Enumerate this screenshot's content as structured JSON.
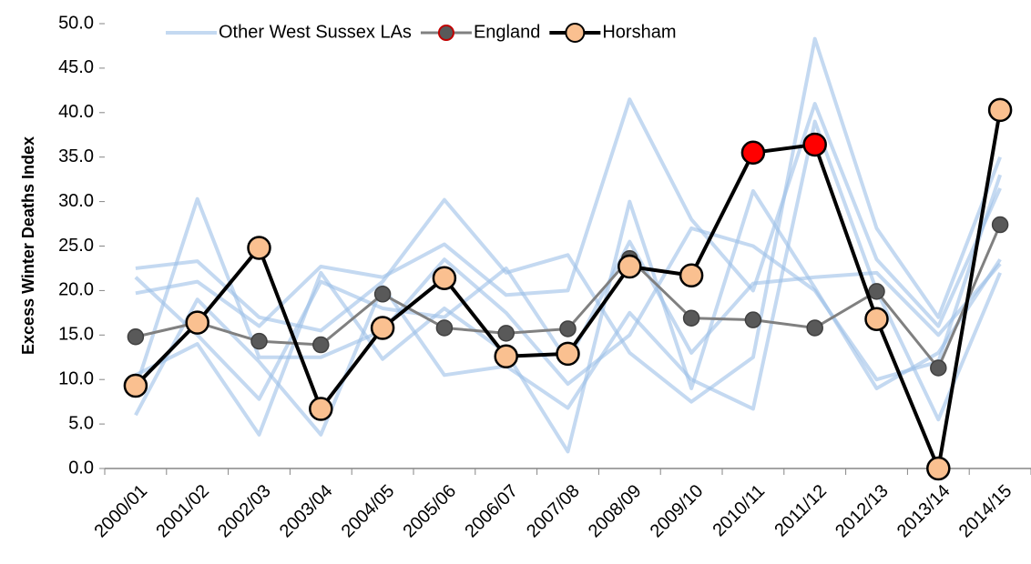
{
  "chart_data": {
    "type": "line",
    "y_label": "Excess Winter Deaths Index",
    "categories": [
      "2000/01",
      "2001/02",
      "2002/03",
      "2003/04",
      "2004/05",
      "2005/06",
      "2006/07",
      "2007/08",
      "2008/09",
      "2009/10",
      "2010/11",
      "2011/12",
      "2012/13",
      "2013/14",
      "2014/15"
    ],
    "series": [
      {
        "name": "Other West Sussex LAs",
        "color": "#9dc0e8",
        "lines": [
          [
            22.5,
            23.3,
            17.0,
            15.5,
            21.0,
            30.2,
            22.0,
            24.0,
            13.0,
            7.5,
            12.5,
            48.3,
            27.0,
            17.0,
            35.0
          ],
          [
            19.7,
            21.0,
            16.0,
            22.7,
            21.5,
            25.2,
            19.5,
            20.0,
            41.5,
            28.0,
            20.0,
            41.0,
            23.5,
            16.0,
            31.5
          ],
          [
            10.5,
            14.0,
            3.8,
            22.0,
            12.3,
            18.0,
            13.0,
            1.9,
            30.0,
            9.0,
            31.2,
            20.3,
            9.0,
            13.0,
            23.5
          ],
          [
            6.0,
            19.0,
            12.0,
            3.8,
            20.5,
            10.5,
            11.5,
            6.8,
            17.5,
            10.0,
            6.7,
            39.0,
            20.0,
            5.5,
            22.0
          ],
          [
            21.5,
            15.0,
            7.8,
            21.0,
            18.0,
            17.0,
            22.5,
            12.0,
            25.5,
            13.0,
            20.8,
            21.5,
            22.0,
            15.0,
            23.0
          ],
          [
            9.0,
            30.3,
            12.5,
            12.5,
            15.5,
            23.5,
            17.5,
            9.5,
            15.0,
            27.0,
            25.0,
            20.0,
            10.0,
            12.0,
            33.0
          ]
        ]
      },
      {
        "name": "England",
        "color": "#808080",
        "marker_color": "#595959",
        "values": [
          14.8,
          16.4,
          14.3,
          13.9,
          19.6,
          15.8,
          15.2,
          15.7,
          23.6,
          16.9,
          16.7,
          15.8,
          19.9,
          11.3,
          27.4
        ]
      },
      {
        "name": "Horsham",
        "color": "#000000",
        "values": [
          9.3,
          16.4,
          24.8,
          6.7,
          15.8,
          21.4,
          12.6,
          12.9,
          22.7,
          21.7,
          35.5,
          36.4,
          16.8,
          0.0,
          40.3
        ],
        "marker_colors": [
          "#fac090",
          "#fac090",
          "#fac090",
          "#fac090",
          "#fac090",
          "#fac090",
          "#fac090",
          "#fac090",
          "#fac090",
          "#fac090",
          "#ff0000",
          "#ff0000",
          "#fac090",
          "#fac090",
          "#fac090"
        ]
      }
    ],
    "ylim": [
      0,
      50
    ],
    "yticks": [
      {
        "value": 0,
        "label": "0.0"
      },
      {
        "value": 5,
        "label": "5.0"
      },
      {
        "value": 10,
        "label": "10.0"
      },
      {
        "value": 15,
        "label": "15.0"
      },
      {
        "value": 20,
        "label": "20.0"
      },
      {
        "value": 25,
        "label": "25.0"
      },
      {
        "value": 30,
        "label": "30.0"
      },
      {
        "value": 35,
        "label": "35.0"
      },
      {
        "value": 40,
        "label": "40.0"
      },
      {
        "value": 45,
        "label": "45.0"
      },
      {
        "value": 50,
        "label": "50.0"
      }
    ],
    "grid": false,
    "legend": "top"
  }
}
